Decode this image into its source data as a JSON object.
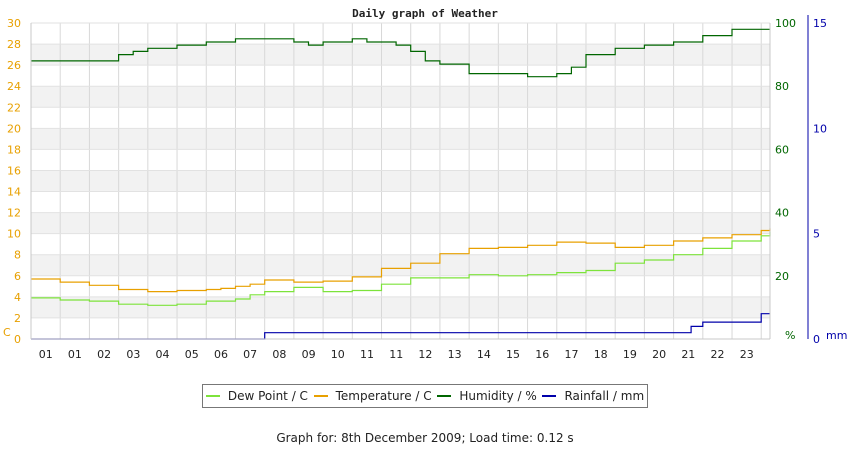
{
  "chart_data": {
    "type": "line",
    "title": "Daily graph of Weather",
    "x_tick_labels": [
      "01",
      "01",
      "02",
      "03",
      "04",
      "05",
      "06",
      "07",
      "08",
      "09",
      "10",
      "11",
      "11",
      "12",
      "13",
      "14",
      "15",
      "16",
      "17",
      "18",
      "19",
      "20",
      "21",
      "22",
      "23"
    ],
    "x_tick_hours": [
      1,
      2,
      3,
      4,
      5,
      6,
      7,
      8,
      9,
      10,
      11,
      12,
      13,
      14,
      15,
      16,
      17,
      18,
      19,
      20,
      21,
      22,
      23,
      24,
      25
    ],
    "x_range_hours": [
      0,
      25.3
    ],
    "y_left": {
      "unit": "C",
      "range": [
        0,
        30
      ],
      "ticks": [
        0,
        2,
        4,
        6,
        8,
        10,
        12,
        14,
        16,
        18,
        20,
        22,
        24,
        26,
        28,
        30
      ],
      "color": "#e8a000"
    },
    "y_humidity": {
      "unit": "%",
      "range": [
        0,
        100
      ],
      "ticks": [
        0,
        20,
        40,
        60,
        80,
        100
      ],
      "color": "#006600"
    },
    "y_rain": {
      "unit": "mm",
      "range": [
        0,
        15
      ],
      "ticks": [
        0,
        5,
        10,
        15
      ],
      "color": "#0000aa"
    },
    "grid": true,
    "legend_position": "bottom",
    "series": [
      {
        "name": "Dew Point / C",
        "color": "#7de33b",
        "axis": "left",
        "x": [
          0,
          1,
          2,
          3,
          4,
          5,
          6,
          7,
          7.5,
          8,
          9,
          10,
          11,
          12,
          13,
          14,
          15,
          16,
          17,
          18,
          19,
          20,
          21,
          22,
          23,
          24,
          25,
          25.3
        ],
        "y": [
          3.9,
          3.7,
          3.6,
          3.3,
          3.2,
          3.3,
          3.6,
          3.8,
          4.2,
          4.5,
          4.9,
          4.5,
          4.6,
          5.2,
          5.8,
          5.8,
          6.1,
          6.0,
          6.1,
          6.3,
          6.5,
          7.2,
          7.5,
          8.0,
          8.6,
          9.3,
          9.8,
          10.2
        ]
      },
      {
        "name": "Temperature / C",
        "color": "#e8a000",
        "axis": "left",
        "x": [
          0,
          1,
          2,
          3,
          4,
          5,
          6,
          6.5,
          7,
          7.5,
          8,
          9,
          10,
          11,
          12,
          13,
          14,
          15,
          16,
          17,
          18,
          19,
          20,
          21,
          22,
          23,
          24,
          25,
          25.3
        ],
        "y": [
          5.7,
          5.4,
          5.1,
          4.7,
          4.5,
          4.6,
          4.7,
          4.8,
          5.0,
          5.2,
          5.6,
          5.4,
          5.5,
          5.9,
          6.7,
          7.2,
          8.1,
          8.6,
          8.7,
          8.9,
          9.2,
          9.1,
          8.7,
          8.9,
          9.3,
          9.6,
          9.9,
          10.3,
          10.5
        ]
      },
      {
        "name": "Humidity / %",
        "color": "#006600",
        "axis": "humidity",
        "x": [
          0,
          1,
          2,
          2.4,
          3,
          3.5,
          4,
          5,
          6,
          6.5,
          7,
          8,
          9,
          9.5,
          10,
          11,
          11.5,
          12,
          12.5,
          13,
          13.5,
          14,
          15,
          16,
          17,
          17.5,
          18,
          18.5,
          19,
          20,
          21,
          22,
          23,
          24,
          25,
          25.3
        ],
        "y": [
          88,
          88,
          88,
          88,
          90,
          91,
          92,
          93,
          94,
          94,
          95,
          95,
          94,
          93,
          94,
          95,
          94,
          94,
          93,
          91,
          88,
          87,
          84,
          84,
          83,
          83,
          84,
          86,
          90,
          92,
          93,
          94,
          96,
          98,
          98,
          98
        ]
      },
      {
        "name": "Rainfall / mm",
        "color": "#0000aa",
        "axis": "rain",
        "step": true,
        "x": [
          0,
          8,
          8,
          22.2,
          22.6,
          23,
          24,
          25,
          25.3
        ],
        "y": [
          0,
          0,
          0.3,
          0.3,
          0.6,
          0.8,
          0.8,
          1.2,
          1.2
        ]
      }
    ]
  },
  "footer": "Graph for: 8th December 2009; Load time: 0.12 s"
}
